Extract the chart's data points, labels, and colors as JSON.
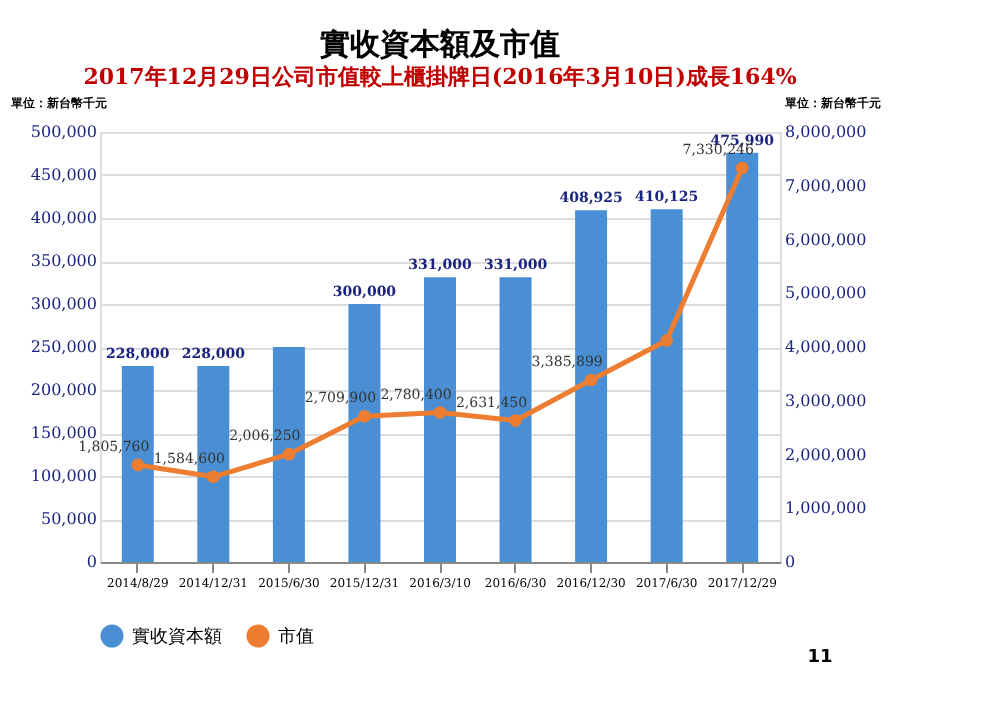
{
  "chart_data": {
    "type": "bar",
    "title": "實收資本額及市值",
    "subtitle": "2017年12月29日公司市值較上櫃掛牌日(2016年3月10日)成長164%",
    "ylabel": "單位：新台幣千元",
    "y2label": "單位：新台幣千元",
    "categories": [
      "2014/8/29",
      "2014/12/31",
      "2015/6/30",
      "2015/12/31",
      "2016/3/10",
      "2016/6/30",
      "2016/12/30",
      "2017/6/30",
      "2017/12/29"
    ],
    "series": [
      {
        "name": "實收資本額",
        "color": "#4a8fd4",
        "values": [
          228000,
          228000,
          250000,
          300000,
          331000,
          331000,
          408925,
          410125,
          475990
        ],
        "value_labels": [
          "228,000",
          "228,000",
          null,
          "300,000",
          "331,000",
          "331,000",
          "408,925",
          "410,125",
          "475,990"
        ]
      },
      {
        "name": "市值",
        "type": "line",
        "axis": "y2",
        "color": "#ed7d31",
        "marker": "circle",
        "values": [
          1805760,
          1584600,
          2006250,
          2709900,
          2780400,
          2631450,
          3385899,
          4120000,
          7330246
        ],
        "value_labels": [
          "1,805,760",
          "1,584,600",
          "2,006,250",
          "2,709,900",
          "2,780,400",
          "2,631,450",
          "3,385,899",
          null,
          "7,330,246"
        ]
      }
    ],
    "ylim": [
      0,
      500000
    ],
    "yticks": [
      0,
      {
        "value": 50000,
        "label": "50,000"
      },
      {
        "value": 100000,
        "label": "100,000"
      },
      {
        "value": 150000,
        "label": "150,000"
      },
      {
        "value": 200000,
        "label": "200,000"
      },
      {
        "value": 250000,
        "label": "250,000"
      },
      {
        "value": 300000,
        "label": "300,000"
      },
      {
        "value": 350000,
        "label": "350,000"
      },
      {
        "value": 400000,
        "label": "400,000"
      },
      {
        "value": 450000,
        "label": "450,000"
      },
      {
        "value": 500000,
        "label": "500,000"
      }
    ],
    "y2lim": [
      0,
      8000000
    ],
    "y2ticks": [
      0,
      {
        "value": 1000000,
        "label": "1,000,000"
      },
      {
        "value": 2000000,
        "label": "2,000,000"
      },
      {
        "value": 3000000,
        "label": "3,000,000"
      },
      {
        "value": 4000000,
        "label": "4,000,000"
      },
      {
        "value": 5000000,
        "label": "5,000,000"
      },
      {
        "value": 6000000,
        "label": "6,000,000"
      },
      {
        "value": 7000000,
        "label": "7,000,000"
      },
      {
        "value": 8000000,
        "label": "8,000,000"
      }
    ],
    "grid": "y",
    "legend": "bottom",
    "annotations": [
      "11"
    ]
  }
}
